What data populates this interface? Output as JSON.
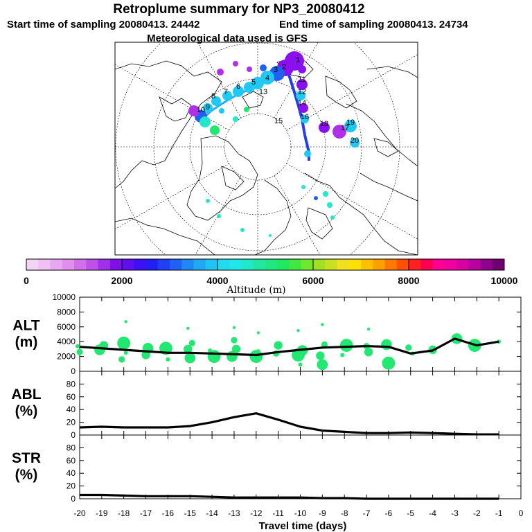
{
  "title": "Retroplume summary for NP3_20080412",
  "start_label": "Start time of sampling 20080413. 24442",
  "end_label": "End time of sampling 20080413. 24734",
  "met_label": "Meteorological data used is GFS",
  "colorbar": {
    "label": "Altitude (m)",
    "ticks": [
      "0",
      "2000",
      "4000",
      "6000",
      "8000",
      "10000"
    ],
    "colors": [
      "#f4d4f4",
      "#f0c0f4",
      "#e8a8f0",
      "#e090ec",
      "#d070ea",
      "#c050ea",
      "#a030ea",
      "#8010ea",
      "#6010f0",
      "#4010f4",
      "#2020f4",
      "#2040f4",
      "#2060f4",
      "#2088f4",
      "#20a8f4",
      "#20c4f4",
      "#20dcf0",
      "#20e8e8",
      "#20e8c8",
      "#20e8a0",
      "#20e880",
      "#20e860",
      "#40e840",
      "#70e830",
      "#a0e020",
      "#c8e020",
      "#f0e020",
      "#ffe000",
      "#ffc000",
      "#ffa000",
      "#ff7800",
      "#ff5000",
      "#ff2020",
      "#ff0050",
      "#ff0090",
      "#f000a0",
      "#d800a0",
      "#b800a0",
      "#900090",
      "#700070"
    ]
  },
  "map": {
    "labels": [
      "1",
      "2",
      "3",
      "4",
      "5",
      "6",
      "7",
      "8",
      "9",
      "10",
      "11",
      "12",
      "13",
      "14",
      "15",
      "16",
      "17",
      "18",
      "19",
      "20"
    ],
    "colors": {
      "purple": "#8a10f0",
      "violet": "#b030e8",
      "blue": "#2060f4",
      "cyan": "#20c8f4",
      "teal": "#20e8c8",
      "green": "#20e870"
    }
  },
  "chart_data": [
    {
      "type": "line",
      "panel": "ALT",
      "ylabel_line1": "ALT",
      "ylabel_line2": "(m)",
      "x": [
        -20,
        -19,
        -18,
        -17,
        -16,
        -15,
        -14,
        -13,
        -12,
        -11,
        -10,
        -9,
        -8,
        -7,
        -6,
        -5,
        -4,
        -3,
        -2,
        -1
      ],
      "values": [
        3300,
        3100,
        2900,
        2700,
        2500,
        2500,
        2400,
        2300,
        2200,
        2600,
        2900,
        3200,
        3300,
        3400,
        3300,
        2400,
        2800,
        4400,
        3500,
        4000
      ],
      "ylim": [
        0,
        10000
      ],
      "yticks": [
        "0",
        "2000",
        "4000",
        "6000",
        "8000",
        "10000"
      ],
      "marker_color": "#20e870",
      "scatter_points": [
        [
          -20,
          3400
        ],
        [
          -20,
          2600
        ],
        [
          -19,
          3500
        ],
        [
          -19,
          2900
        ],
        [
          -18,
          3800
        ],
        [
          -18,
          2500
        ],
        [
          -18,
          1600
        ],
        [
          -17,
          2200
        ],
        [
          -17,
          3100
        ],
        [
          -16,
          3100
        ],
        [
          -16,
          1600
        ],
        [
          -15,
          3800
        ],
        [
          -15,
          3000
        ],
        [
          -15,
          1800
        ],
        [
          -14,
          2000
        ],
        [
          -14,
          2800
        ],
        [
          -13,
          4200
        ],
        [
          -13,
          3000
        ],
        [
          -13,
          2000
        ],
        [
          -12,
          2000
        ],
        [
          -12,
          2700
        ],
        [
          -11,
          2400
        ],
        [
          -11,
          3500
        ],
        [
          -10,
          2800
        ],
        [
          -10,
          2200
        ],
        [
          -10,
          900
        ],
        [
          -9,
          3600
        ],
        [
          -9,
          2100
        ],
        [
          -9,
          900
        ],
        [
          -8,
          3500
        ],
        [
          -8,
          2200
        ],
        [
          -7,
          3400
        ],
        [
          -7,
          2600
        ],
        [
          -6,
          3600
        ],
        [
          -6,
          1100
        ],
        [
          -5,
          2400
        ],
        [
          -5,
          3200
        ],
        [
          -4,
          2900
        ],
        [
          -3,
          4400
        ],
        [
          -2,
          3500
        ],
        [
          -1,
          4000
        ],
        [
          -18,
          6700
        ],
        [
          -15,
          5800
        ],
        [
          -13,
          5900
        ],
        [
          -12,
          5200
        ],
        [
          -10,
          5500
        ],
        [
          -9,
          6300
        ],
        [
          -7,
          5700
        ]
      ]
    },
    {
      "type": "line",
      "panel": "ABL",
      "ylabel_line1": "ABL",
      "ylabel_line2": "(%)",
      "x": [
        -20,
        -19,
        -18,
        -17,
        -16,
        -15,
        -14,
        -13,
        -12,
        -11,
        -10,
        -9,
        -8,
        -7,
        -6,
        -5,
        -4,
        -3,
        -2,
        -1
      ],
      "values": [
        12,
        13,
        12,
        12,
        12,
        14,
        20,
        28,
        34,
        24,
        13,
        7,
        5,
        3,
        3,
        4,
        3,
        2,
        1,
        1
      ],
      "ylim": [
        0,
        100
      ],
      "yticks": [
        "0",
        "20",
        "40",
        "60",
        "80"
      ]
    },
    {
      "type": "line",
      "panel": "STR",
      "ylabel_line1": "STR",
      "ylabel_line2": "(%)",
      "x": [
        -20,
        -19,
        -18,
        -17,
        -16,
        -15,
        -14,
        -13,
        -12,
        -11,
        -10,
        -9,
        -8,
        -7,
        -6,
        -5,
        -4,
        -3,
        -2,
        -1
      ],
      "values": [
        6,
        6,
        5,
        4,
        4,
        4,
        3,
        2,
        2,
        2,
        2,
        1,
        1,
        0,
        0,
        0,
        0,
        0,
        0,
        0
      ],
      "ylim": [
        0,
        100
      ],
      "yticks": [
        "0",
        "20",
        "40",
        "60",
        "80"
      ],
      "xlabel": "Travel time (days)",
      "xticks": [
        "-20",
        "-19",
        "-18",
        "-17",
        "-16",
        "-15",
        "-14",
        "-13",
        "-12",
        "-11",
        "-10",
        "-9",
        "-8",
        "-7",
        "-6",
        "-5",
        "-4",
        "-3",
        "-2",
        "-1",
        "0"
      ]
    }
  ]
}
